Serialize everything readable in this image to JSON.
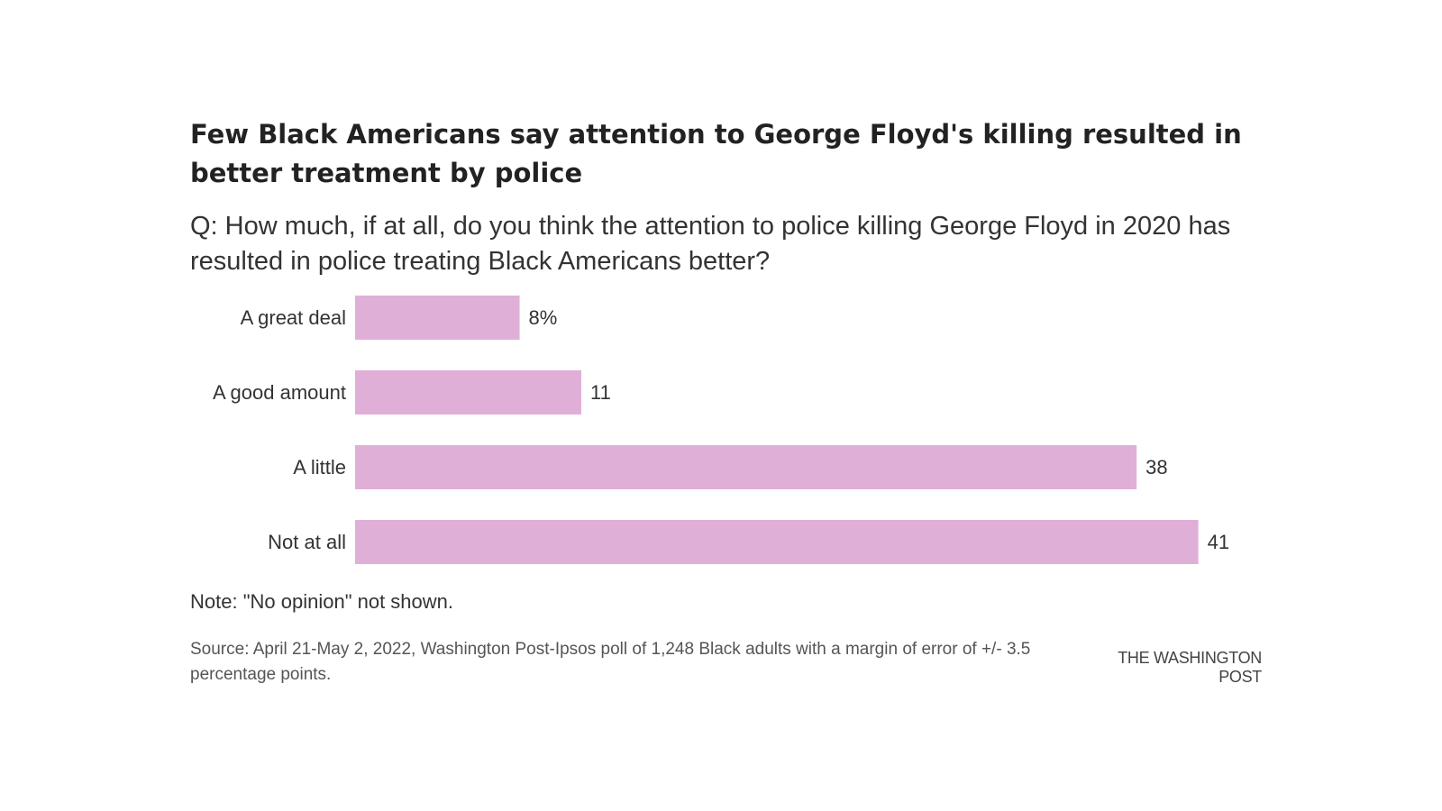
{
  "header": {
    "title": "Few Black Americans say attention to George Floyd's killing resulted in better treatment by police",
    "subtitle": "Q: How much, if at all, do you think the attention to police killing George Floyd in 2020 has resulted in police treating Black Americans better?"
  },
  "chart_data": {
    "type": "bar",
    "orientation": "horizontal",
    "categories": [
      "A great deal",
      "A good amount",
      "A little",
      "Not at all"
    ],
    "values": [
      8,
      11,
      38,
      41
    ],
    "value_labels": [
      "8%",
      "11",
      "38",
      "41"
    ],
    "unit": "%",
    "bar_color": "#e0afd8",
    "grid": false,
    "legend": "none"
  },
  "footer": {
    "note": "Note: \"No opinion\" not shown.",
    "source": "Source: April 21-May 2, 2022, Washington Post-Ipsos poll of 1,248 Black adults with a margin of error of +/- 3.5 percentage points.",
    "credit": "THE WASHINGTON POST"
  }
}
